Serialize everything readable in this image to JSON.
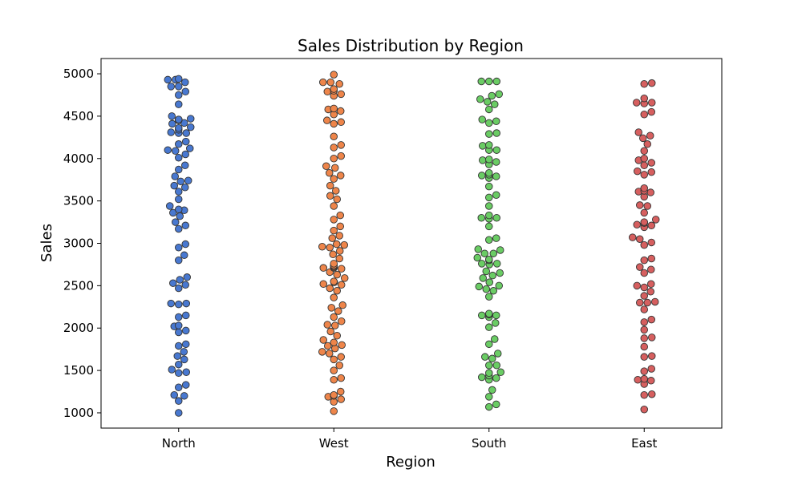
{
  "chart_data": {
    "type": "scatter",
    "subtype": "swarm",
    "title": "Sales Distribution by Region",
    "xlabel": "Region",
    "ylabel": "Sales",
    "categories": [
      "North",
      "West",
      "South",
      "East"
    ],
    "ylim": [
      820,
      5180
    ],
    "yticks": [
      1000,
      1500,
      2000,
      2500,
      3000,
      3500,
      4000,
      4500,
      5000
    ],
    "ytick_labels": [
      "1000",
      "1500",
      "2000",
      "2500",
      "3000",
      "3500",
      "4000",
      "4500",
      "5000"
    ],
    "grid": false,
    "legend": "none",
    "series": [
      {
        "color": "#4878d0",
        "values": [
          4930,
          4930,
          4900,
          4940,
          4850,
          4850,
          4790,
          4750,
          4640,
          4500,
          4470,
          4460,
          4460,
          4450,
          4420,
          4410,
          4370,
          4360,
          4340,
          4310,
          4300,
          4300,
          4200,
          4170,
          4120,
          4100,
          4090,
          4050,
          4010,
          3920,
          3870,
          3790,
          3740,
          3730,
          3680,
          3660,
          3610,
          3520,
          3440,
          3400,
          3390,
          3360,
          3320,
          3250,
          3210,
          3170,
          2990,
          2950,
          2860,
          2800,
          2600,
          2570,
          2530,
          2510,
          2470,
          2290,
          2290,
          2280,
          2150,
          2130,
          2030,
          2020,
          1970,
          1950,
          1810,
          1790,
          1720,
          1670,
          1630,
          1570,
          1510,
          1480,
          1470,
          1330,
          1300,
          1210,
          1200,
          1140,
          1000
        ]
      },
      {
        "color": "#ee854a",
        "values": [
          4990,
          4900,
          4900,
          4880,
          4820,
          4800,
          4790,
          4760,
          4740,
          4590,
          4580,
          4560,
          4520,
          4450,
          4430,
          4410,
          4260,
          4160,
          4130,
          4030,
          4000,
          3910,
          3890,
          3830,
          3800,
          3760,
          3680,
          3620,
          3560,
          3520,
          3440,
          3330,
          3280,
          3200,
          3150,
          3090,
          3060,
          2990,
          2980,
          2960,
          2950,
          2910,
          2870,
          2820,
          2760,
          2740,
          2730,
          2720,
          2710,
          2710,
          2700,
          2660,
          2630,
          2590,
          2550,
          2540,
          2520,
          2510,
          2470,
          2440,
          2360,
          2270,
          2240,
          2200,
          2130,
          2080,
          2040,
          2030,
          1960,
          1910,
          1860,
          1830,
          1800,
          1790,
          1760,
          1720,
          1700,
          1660,
          1630,
          1560,
          1500,
          1410,
          1390,
          1250,
          1210,
          1200,
          1190,
          1160,
          1130,
          1020
        ]
      },
      {
        "color": "#6acc64",
        "values": [
          4910,
          4910,
          4910,
          4760,
          4740,
          4700,
          4670,
          4640,
          4580,
          4460,
          4440,
          4420,
          4300,
          4290,
          4160,
          4150,
          4100,
          4100,
          3990,
          3980,
          3960,
          3930,
          3830,
          3810,
          3800,
          3790,
          3770,
          3670,
          3570,
          3540,
          3440,
          3330,
          3300,
          3300,
          3290,
          3200,
          3060,
          3040,
          2930,
          2920,
          2880,
          2880,
          2830,
          2810,
          2800,
          2760,
          2760,
          2750,
          2670,
          2650,
          2620,
          2590,
          2540,
          2500,
          2490,
          2460,
          2440,
          2370,
          2170,
          2160,
          2160,
          2150,
          2150,
          2130,
          2060,
          2010,
          1870,
          1810,
          1700,
          1660,
          1640,
          1560,
          1560,
          1480,
          1470,
          1440,
          1420,
          1410,
          1390,
          1270,
          1190,
          1100,
          1070
        ]
      },
      {
        "color": "#d65f5f",
        "values": [
          4890,
          4880,
          4710,
          4660,
          4660,
          4650,
          4550,
          4520,
          4310,
          4270,
          4240,
          4170,
          4090,
          4000,
          3980,
          3950,
          3920,
          3850,
          3840,
          3810,
          3650,
          3620,
          3610,
          3600,
          3550,
          3450,
          3440,
          3360,
          3280,
          3250,
          3240,
          3220,
          3210,
          3190,
          3070,
          3050,
          3010,
          2980,
          2820,
          2800,
          2720,
          2690,
          2650,
          2520,
          2500,
          2480,
          2430,
          2380,
          2310,
          2300,
          2300,
          2220,
          2100,
          2070,
          1980,
          1890,
          1880,
          1780,
          1670,
          1660,
          1520,
          1490,
          1400,
          1390,
          1380,
          1340,
          1220,
          1210,
          1040
        ]
      }
    ]
  }
}
